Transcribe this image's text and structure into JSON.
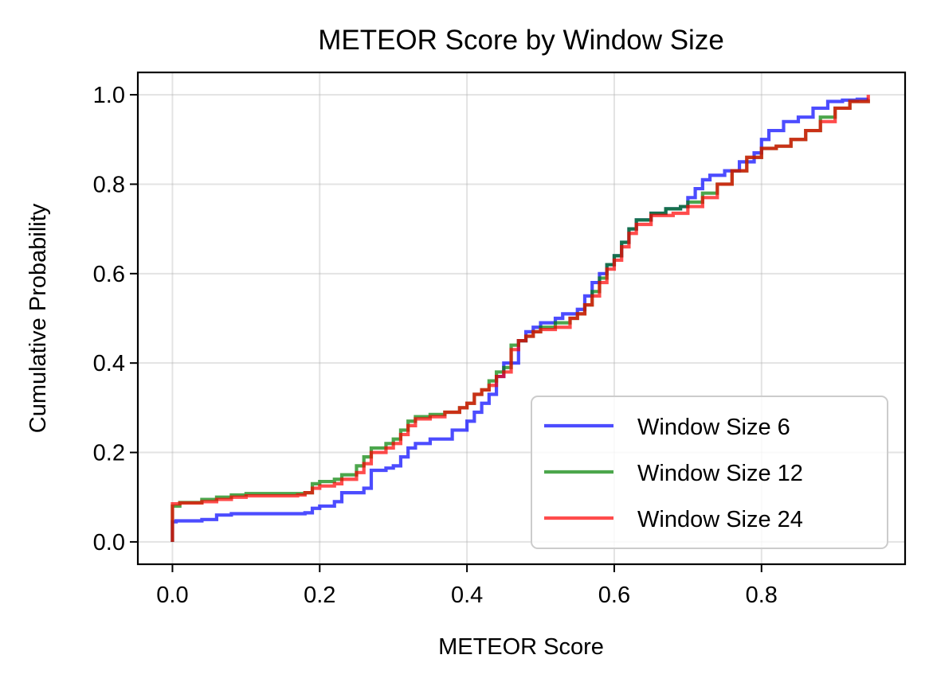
{
  "chart_data": {
    "type": "line",
    "title": "METEOR Score by Window Size",
    "xlabel": "METEOR Score",
    "ylabel": "Cumulative Probability",
    "xlim": [
      -0.047,
      0.995
    ],
    "ylim": [
      -0.05,
      1.05
    ],
    "xticks": [
      0.0,
      0.2,
      0.4,
      0.6,
      0.8
    ],
    "xtick_labels": [
      "0.0",
      "0.2",
      "0.4",
      "0.6",
      "0.8"
    ],
    "yticks": [
      0.0,
      0.2,
      0.4,
      0.6,
      0.8,
      1.0
    ],
    "ytick_labels": [
      "0.0",
      "0.2",
      "0.4",
      "0.6",
      "0.8",
      "1.0"
    ],
    "grid": true,
    "legend_position": "lower-right",
    "series": [
      {
        "name": "Window Size 6",
        "color": "#0000ff",
        "x": [
          0.0,
          0.0,
          0.005,
          0.04,
          0.06,
          0.08,
          0.18,
          0.19,
          0.2,
          0.22,
          0.23,
          0.26,
          0.27,
          0.29,
          0.3,
          0.31,
          0.32,
          0.33,
          0.35,
          0.38,
          0.4,
          0.41,
          0.42,
          0.43,
          0.44,
          0.45,
          0.46,
          0.47,
          0.48,
          0.49,
          0.5,
          0.52,
          0.53,
          0.55,
          0.56,
          0.57,
          0.58,
          0.59,
          0.6,
          0.61,
          0.62,
          0.63,
          0.65,
          0.67,
          0.69,
          0.7,
          0.71,
          0.72,
          0.73,
          0.75,
          0.77,
          0.79,
          0.8,
          0.81,
          0.83,
          0.85,
          0.87,
          0.89,
          0.91,
          0.93,
          0.945
        ],
        "y": [
          0.0,
          0.045,
          0.047,
          0.05,
          0.06,
          0.063,
          0.065,
          0.075,
          0.08,
          0.09,
          0.11,
          0.12,
          0.16,
          0.165,
          0.17,
          0.19,
          0.21,
          0.22,
          0.23,
          0.25,
          0.27,
          0.29,
          0.31,
          0.33,
          0.37,
          0.4,
          0.4,
          0.45,
          0.47,
          0.48,
          0.49,
          0.5,
          0.51,
          0.52,
          0.55,
          0.58,
          0.6,
          0.62,
          0.64,
          0.67,
          0.7,
          0.72,
          0.735,
          0.745,
          0.75,
          0.77,
          0.79,
          0.81,
          0.82,
          0.83,
          0.85,
          0.87,
          0.9,
          0.92,
          0.94,
          0.95,
          0.97,
          0.985,
          0.988,
          0.99,
          0.99
        ]
      },
      {
        "name": "Window Size 12",
        "color": "#008000",
        "x": [
          0.0,
          0.0,
          0.01,
          0.04,
          0.06,
          0.08,
          0.1,
          0.18,
          0.19,
          0.2,
          0.22,
          0.23,
          0.25,
          0.26,
          0.27,
          0.29,
          0.3,
          0.31,
          0.32,
          0.33,
          0.35,
          0.37,
          0.39,
          0.4,
          0.41,
          0.42,
          0.43,
          0.44,
          0.45,
          0.46,
          0.47,
          0.48,
          0.49,
          0.5,
          0.52,
          0.54,
          0.55,
          0.56,
          0.57,
          0.58,
          0.59,
          0.6,
          0.61,
          0.62,
          0.63,
          0.65,
          0.67,
          0.69,
          0.7,
          0.72,
          0.74,
          0.76,
          0.78,
          0.8,
          0.82,
          0.84,
          0.86,
          0.88,
          0.9,
          0.92,
          0.945
        ],
        "y": [
          0.0,
          0.08,
          0.088,
          0.095,
          0.1,
          0.105,
          0.108,
          0.11,
          0.13,
          0.135,
          0.14,
          0.15,
          0.17,
          0.19,
          0.21,
          0.22,
          0.23,
          0.25,
          0.27,
          0.28,
          0.285,
          0.29,
          0.3,
          0.31,
          0.33,
          0.34,
          0.36,
          0.38,
          0.39,
          0.44,
          0.45,
          0.46,
          0.47,
          0.48,
          0.49,
          0.5,
          0.51,
          0.53,
          0.56,
          0.59,
          0.62,
          0.64,
          0.67,
          0.7,
          0.72,
          0.735,
          0.745,
          0.75,
          0.76,
          0.78,
          0.8,
          0.83,
          0.86,
          0.88,
          0.885,
          0.9,
          0.92,
          0.95,
          0.97,
          0.985,
          0.99
        ]
      },
      {
        "name": "Window Size 24",
        "color": "#ff0000",
        "x": [
          0.0,
          0.0,
          0.01,
          0.04,
          0.06,
          0.08,
          0.1,
          0.17,
          0.18,
          0.19,
          0.2,
          0.22,
          0.23,
          0.25,
          0.26,
          0.27,
          0.29,
          0.3,
          0.31,
          0.32,
          0.33,
          0.35,
          0.37,
          0.39,
          0.4,
          0.41,
          0.42,
          0.43,
          0.44,
          0.45,
          0.46,
          0.47,
          0.48,
          0.49,
          0.5,
          0.52,
          0.54,
          0.55,
          0.56,
          0.57,
          0.58,
          0.59,
          0.6,
          0.61,
          0.62,
          0.63,
          0.65,
          0.68,
          0.7,
          0.72,
          0.74,
          0.76,
          0.78,
          0.8,
          0.82,
          0.84,
          0.86,
          0.88,
          0.9,
          0.92,
          0.945
        ],
        "y": [
          0.0,
          0.085,
          0.087,
          0.09,
          0.095,
          0.1,
          0.103,
          0.105,
          0.11,
          0.12,
          0.125,
          0.13,
          0.14,
          0.155,
          0.175,
          0.2,
          0.21,
          0.22,
          0.24,
          0.26,
          0.275,
          0.28,
          0.29,
          0.3,
          0.31,
          0.33,
          0.34,
          0.35,
          0.37,
          0.38,
          0.43,
          0.45,
          0.46,
          0.47,
          0.475,
          0.48,
          0.5,
          0.51,
          0.53,
          0.55,
          0.58,
          0.61,
          0.63,
          0.66,
          0.69,
          0.71,
          0.73,
          0.735,
          0.75,
          0.77,
          0.8,
          0.83,
          0.86,
          0.88,
          0.885,
          0.9,
          0.92,
          0.94,
          0.97,
          0.985,
          1.0
        ]
      }
    ]
  }
}
